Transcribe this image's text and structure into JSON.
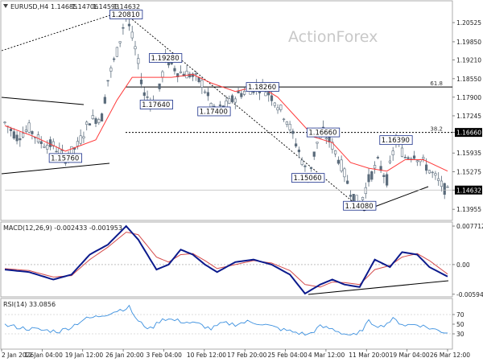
{
  "header": {
    "symbol": "EURUSD,H4",
    "open": "1.14685",
    "high": "1.14706",
    "low": "1.14593",
    "close": "1.14632"
  },
  "watermark": "ActionForex",
  "colors": {
    "candle": "#5a6b7b",
    "ma": "#ff3b3b",
    "macd": "#0b1a8c",
    "signal": "#d44b4b",
    "rsi": "#3a8fdf",
    "trend": "#000000",
    "level": "#000000",
    "price_tag_bg": "#000000",
    "price_tag_fg": "#ffffff"
  },
  "chart_data": [
    {
      "type": "candlestick",
      "y_ticks": [
        "1.20525",
        "1.19850",
        "1.19210",
        "1.18550",
        "1.17900",
        "1.17245",
        "1.16660",
        "1.15935",
        "1.15275",
        "1.14632",
        "1.13955"
      ],
      "ylim": [
        1.1362,
        1.2115
      ],
      "last_price": "1.14632",
      "fib_levels": [
        {
          "label": "61.8",
          "value": 1.1826
        },
        {
          "label": "38.2",
          "value": 1.1666
        }
      ],
      "right_tag_level": "1.16660",
      "annotations": [
        {
          "label": "1.20810",
          "time_index": 40,
          "price": 1.2081
        },
        {
          "label": "1.19280",
          "time_index": 53,
          "price": 1.1928
        },
        {
          "label": "1.17640",
          "time_index": 50,
          "price": 1.1764
        },
        {
          "label": "1.17400",
          "time_index": 69,
          "price": 1.174
        },
        {
          "label": "1.18260",
          "time_index": 85,
          "price": 1.1826
        },
        {
          "label": "1.15760",
          "time_index": 20,
          "price": 1.1576
        },
        {
          "label": "1.16660",
          "time_index": 105,
          "price": 1.1666
        },
        {
          "label": "1.15060",
          "time_index": 100,
          "price": 1.1506
        },
        {
          "label": "1.14080",
          "time_index": 117,
          "price": 1.1408
        },
        {
          "label": "1.16390",
          "time_index": 129,
          "price": 1.1639
        }
      ],
      "ohlc_path": [
        [
          0,
          1.17
        ],
        [
          4,
          1.165
        ],
        [
          8,
          1.168
        ],
        [
          12,
          1.163
        ],
        [
          16,
          1.162
        ],
        [
          20,
          1.1576
        ],
        [
          24,
          1.162
        ],
        [
          28,
          1.171
        ],
        [
          32,
          1.172
        ],
        [
          34,
          1.185
        ],
        [
          37,
          1.195
        ],
        [
          40,
          1.2081
        ],
        [
          43,
          1.196
        ],
        [
          46,
          1.18
        ],
        [
          50,
          1.1764
        ],
        [
          53,
          1.1928
        ],
        [
          57,
          1.188
        ],
        [
          61,
          1.187
        ],
        [
          65,
          1.184
        ],
        [
          69,
          1.174
        ],
        [
          73,
          1.176
        ],
        [
          77,
          1.18
        ],
        [
          81,
          1.182
        ],
        [
          85,
          1.1826
        ],
        [
          89,
          1.178
        ],
        [
          93,
          1.171
        ],
        [
          97,
          1.16
        ],
        [
          100,
          1.1506
        ],
        [
          103,
          1.163
        ],
        [
          105,
          1.1666
        ],
        [
          108,
          1.162
        ],
        [
          111,
          1.155
        ],
        [
          114,
          1.146
        ],
        [
          117,
          1.1408
        ],
        [
          120,
          1.15
        ],
        [
          123,
          1.156
        ],
        [
          126,
          1.15
        ],
        [
          129,
          1.1639
        ],
        [
          132,
          1.158
        ],
        [
          135,
          1.159
        ],
        [
          138,
          1.156
        ],
        [
          141,
          1.152
        ],
        [
          144,
          1.148
        ],
        [
          146,
          1.1455
        ]
      ],
      "ma_series": [
        [
          0,
          1.169
        ],
        [
          10,
          1.165
        ],
        [
          20,
          1.16
        ],
        [
          30,
          1.164
        ],
        [
          37,
          1.178
        ],
        [
          42,
          1.186
        ],
        [
          48,
          1.186
        ],
        [
          55,
          1.186
        ],
        [
          62,
          1.187
        ],
        [
          68,
          1.184
        ],
        [
          76,
          1.181
        ],
        [
          84,
          1.183
        ],
        [
          90,
          1.179
        ],
        [
          96,
          1.172
        ],
        [
          102,
          1.165
        ],
        [
          108,
          1.163
        ],
        [
          114,
          1.156
        ],
        [
          120,
          1.154
        ],
        [
          126,
          1.153
        ],
        [
          132,
          1.157
        ],
        [
          138,
          1.157
        ],
        [
          146,
          1.153
        ]
      ],
      "n_bars": 147,
      "x_ticks": [
        "2 Jan 2026",
        "12 Jan 04:00",
        "19 Jan 12:00",
        "26 Jan 20:00",
        "3 Feb 04:00",
        "10 Feb 12:00",
        "17 Feb 20:00",
        "25 Feb 04:00",
        "4 Mar 12:00",
        "11 Mar 20:00",
        "19 Mar 04:00",
        "26 Mar 12:00"
      ]
    },
    {
      "type": "line",
      "title": "MACD(12,26,9) -0.002433 -0.001953",
      "y_ticks": [
        "0.007712",
        "0.00",
        "-0.005944"
      ],
      "ylim": [
        -0.0063,
        0.0082
      ],
      "series": [
        {
          "values": [
            [
              0,
              -0.001
            ],
            [
              8,
              -0.0015
            ],
            [
              16,
              -0.003
            ],
            [
              22,
              -0.002
            ],
            [
              28,
              0.002
            ],
            [
              34,
              0.004
            ],
            [
              40,
              0.0077
            ],
            [
              44,
              0.005
            ],
            [
              50,
              -0.001
            ],
            [
              54,
              0.0
            ],
            [
              58,
              0.003
            ],
            [
              62,
              0.002
            ],
            [
              66,
              0.0
            ],
            [
              70,
              -0.0015
            ],
            [
              76,
              0.0005
            ],
            [
              82,
              0.001
            ],
            [
              88,
              0.0
            ],
            [
              94,
              -0.002
            ],
            [
              99,
              -0.0058
            ],
            [
              104,
              -0.004
            ],
            [
              108,
              -0.003
            ],
            [
              112,
              -0.004
            ],
            [
              117,
              -0.0045
            ],
            [
              122,
              0.001
            ],
            [
              127,
              -0.0005
            ],
            [
              131,
              0.0025
            ],
            [
              136,
              0.002
            ],
            [
              140,
              -0.0005
            ],
            [
              146,
              -0.0024
            ]
          ]
        },
        {
          "values": [
            [
              0,
              -0.0008
            ],
            [
              8,
              -0.0012
            ],
            [
              16,
              -0.0025
            ],
            [
              22,
              -0.0022
            ],
            [
              28,
              0.001
            ],
            [
              34,
              0.0035
            ],
            [
              40,
              0.0065
            ],
            [
              44,
              0.006
            ],
            [
              50,
              0.0015
            ],
            [
              54,
              0.0005
            ],
            [
              58,
              0.002
            ],
            [
              62,
              0.0022
            ],
            [
              66,
              0.0008
            ],
            [
              70,
              -0.0008
            ],
            [
              76,
              0.0
            ],
            [
              82,
              0.0008
            ],
            [
              88,
              0.0003
            ],
            [
              94,
              -0.0012
            ],
            [
              99,
              -0.004
            ],
            [
              104,
              -0.0045
            ],
            [
              108,
              -0.0035
            ],
            [
              112,
              -0.0036
            ],
            [
              117,
              -0.004
            ],
            [
              122,
              -0.001
            ],
            [
              127,
              -0.0002
            ],
            [
              131,
              0.0015
            ],
            [
              136,
              0.0022
            ],
            [
              140,
              0.0008
            ],
            [
              146,
              -0.0019
            ]
          ]
        }
      ]
    },
    {
      "type": "line",
      "title": "RSI(14) 33.0856",
      "y_ticks": [
        "70",
        "50",
        "30"
      ],
      "ylim": [
        0,
        100
      ],
      "series": [
        {
          "values": [
            [
              0,
              48
            ],
            [
              6,
              42
            ],
            [
              12,
              38
            ],
            [
              18,
              35
            ],
            [
              22,
              45
            ],
            [
              26,
              60
            ],
            [
              30,
              65
            ],
            [
              34,
              72
            ],
            [
              38,
              80
            ],
            [
              41,
              85
            ],
            [
              44,
              55
            ],
            [
              48,
              40
            ],
            [
              52,
              62
            ],
            [
              56,
              58
            ],
            [
              60,
              54
            ],
            [
              64,
              50
            ],
            [
              68,
              40
            ],
            [
              72,
              52
            ],
            [
              76,
              50
            ],
            [
              80,
              55
            ],
            [
              84,
              52
            ],
            [
              88,
              45
            ],
            [
              92,
              38
            ],
            [
              96,
              33
            ],
            [
              100,
              28
            ],
            [
              104,
              45
            ],
            [
              108,
              40
            ],
            [
              112,
              30
            ],
            [
              116,
              26
            ],
            [
              120,
              55
            ],
            [
              124,
              45
            ],
            [
              128,
              60
            ],
            [
              132,
              48
            ],
            [
              136,
              50
            ],
            [
              140,
              42
            ],
            [
              144,
              35
            ],
            [
              146,
              33
            ]
          ]
        }
      ]
    }
  ]
}
